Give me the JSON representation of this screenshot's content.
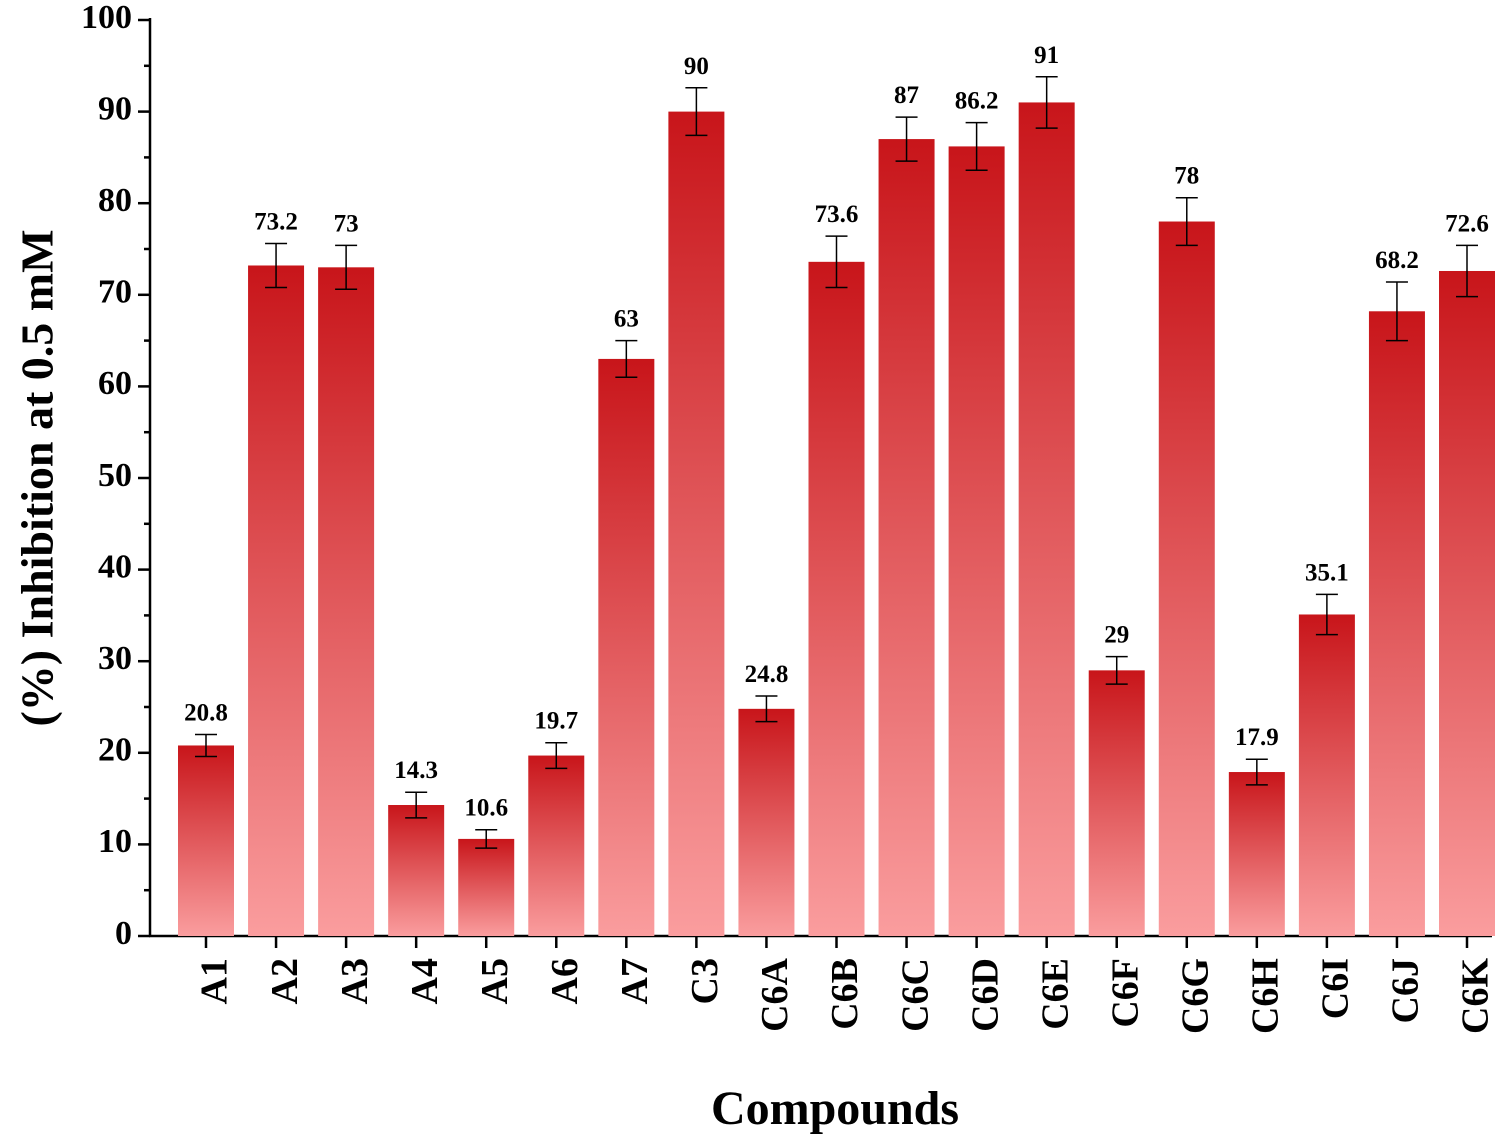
{
  "chart_data": {
    "type": "bar",
    "y_label": "(%) Inhibition at 0.5 mM",
    "x_label": "Compounds",
    "categories": [
      "A1",
      "A2",
      "A3",
      "A4",
      "A5",
      "A6",
      "A7",
      "C3",
      "C6A",
      "C6B",
      "C6C",
      "C6D",
      "C6E",
      "C6F",
      "C6G",
      "C6H",
      "C6I",
      "C6J",
      "C6K"
    ],
    "values": [
      20.8,
      73.2,
      73,
      14.3,
      10.6,
      19.7,
      63,
      90,
      24.8,
      73.6,
      87,
      86.2,
      91,
      29,
      78,
      17.9,
      35.1,
      68.2,
      72.6
    ],
    "errors": [
      1.2,
      2.4,
      2.4,
      1.4,
      1.0,
      1.4,
      2.0,
      2.6,
      1.4,
      2.8,
      2.4,
      2.6,
      2.8,
      1.5,
      2.6,
      1.4,
      2.2,
      3.2,
      2.8
    ],
    "gradient": [
      "#c8151a",
      "#fa9d9e"
    ],
    "ylim": [
      0,
      100
    ],
    "yticks": [
      0,
      10,
      20,
      30,
      40,
      50,
      60,
      70,
      80,
      90,
      100
    ]
  }
}
